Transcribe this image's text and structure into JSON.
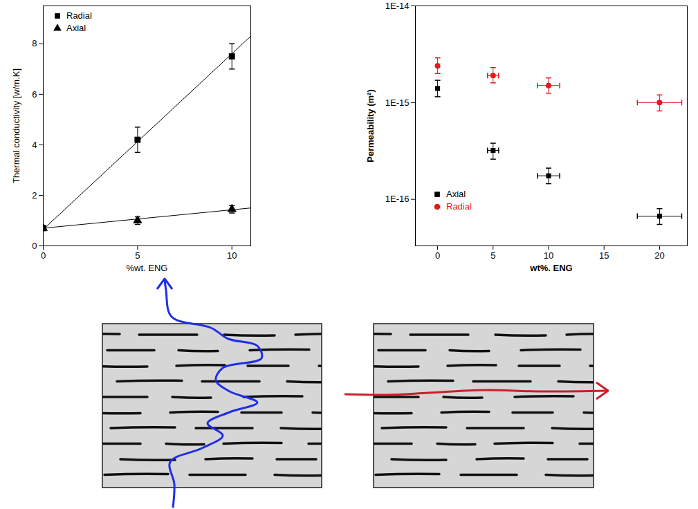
{
  "chart_data": [
    {
      "type": "scatter",
      "x_label": "%wt. ENG",
      "y_label": "Thermal conductivity [w/m.K]",
      "xlim": [
        0,
        11
      ],
      "xticks": [
        0,
        5,
        10
      ],
      "ylim": [
        0,
        9.5
      ],
      "yticks": [
        0,
        2,
        4,
        6,
        8
      ],
      "legend": "top-left",
      "series": [
        {
          "name": "Radial",
          "color": "#000000",
          "marker": "square",
          "x": [
            0,
            5,
            10
          ],
          "values": [
            0.7,
            4.2,
            7.5
          ],
          "errors": [
            0,
            0.5,
            0.5
          ],
          "fit": {
            "x": [
              0,
              11
            ],
            "values": [
              0.65,
              8.3
            ]
          }
        },
        {
          "name": "Axial",
          "color": "#000000",
          "marker": "triangle",
          "x": [
            0,
            5,
            10
          ],
          "values": [
            0.7,
            1.0,
            1.45
          ],
          "errors": [
            0.05,
            0.15,
            0.15
          ],
          "fit": {
            "x": [
              0,
              11
            ],
            "values": [
              0.7,
              1.5
            ]
          }
        }
      ]
    },
    {
      "type": "scatter",
      "log": "y",
      "x_label": "wt%. ENG",
      "y_label": "Permeability (m²)",
      "xlim": [
        -2,
        22.5
      ],
      "xticks": [
        0,
        5,
        10,
        15,
        20
      ],
      "ylim": [
        3.3e-17,
        1e-14
      ],
      "yticks": [
        {
          "value": 1e-16,
          "label": "1E-16"
        },
        {
          "value": 1e-15,
          "label": "1E-15"
        },
        {
          "value": 1e-14,
          "label": "1E-14"
        }
      ],
      "legend": "bottom-left",
      "series": [
        {
          "name": "Axial",
          "color": "#000000",
          "marker": "square",
          "x": [
            0,
            5,
            10,
            20
          ],
          "values": [
            1.4e-15,
            3.2e-16,
            1.75e-16,
            6.7e-17
          ],
          "y_low": [
            1.15e-15,
            2.6e-16,
            1.45e-16,
            5.5e-17
          ],
          "y_high": [
            1.7e-15,
            3.8e-16,
            2.1e-16,
            8e-17
          ],
          "x_errors": [
            0,
            0.5,
            1,
            2
          ]
        },
        {
          "name": "Radial",
          "color": "#e3191c",
          "marker": "circle",
          "x": [
            0,
            5,
            10,
            20
          ],
          "values": [
            2.4e-15,
            1.9e-15,
            1.5e-15,
            1e-15
          ],
          "y_low": [
            2e-15,
            1.6e-15,
            1.25e-15,
            8.2e-16
          ],
          "y_high": [
            2.9e-15,
            2.3e-15,
            1.8e-15,
            1.2e-15
          ],
          "x_errors": [
            0,
            0.5,
            1,
            2
          ]
        }
      ]
    }
  ]
}
